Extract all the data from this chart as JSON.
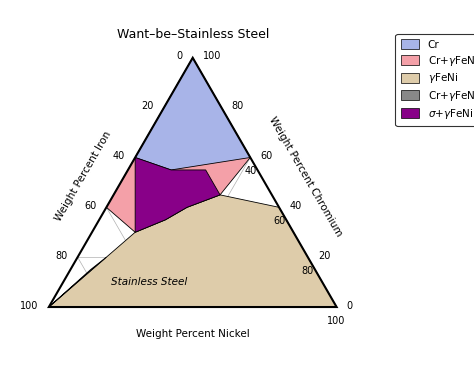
{
  "title": "Want–be–Stainless Steel",
  "xlabel": "Weight Percent Nickel",
  "ylabel_left": "Weight Percent Iron",
  "ylabel_right": "Weight Percent Chromium",
  "grid_color": "#b0b0b0",
  "grid_lw": 0.5,
  "outer_lw": 1.5,
  "region_border_lw": 0.6,
  "regions": [
    {
      "name": "gamma_FeNi",
      "color": "#deccaa",
      "alpha": 1.0,
      "zorder": 2,
      "points_crfeni": [
        [
          0,
          0,
          100
        ],
        [
          0,
          100,
          0
        ],
        [
          10,
          85,
          5
        ],
        [
          20,
          70,
          10
        ],
        [
          30,
          55,
          15
        ],
        [
          35,
          42,
          23
        ],
        [
          40,
          32,
          28
        ],
        [
          45,
          18,
          37
        ],
        [
          40,
          0,
          60
        ]
      ]
    },
    {
      "name": "Cr_gamma",
      "color": "#f4a0a8",
      "alpha": 1.0,
      "zorder": 3,
      "points_crfeni": [
        [
          100,
          0,
          0
        ],
        [
          60,
          0,
          40
        ],
        [
          45,
          18,
          37
        ],
        [
          40,
          32,
          28
        ],
        [
          35,
          42,
          23
        ],
        [
          30,
          55,
          15
        ],
        [
          40,
          60,
          0
        ],
        [
          100,
          0,
          0
        ]
      ]
    },
    {
      "name": "Cr",
      "color": "#a8b4e8",
      "alpha": 1.0,
      "zorder": 4,
      "points_crfeni": [
        [
          100,
          0,
          0
        ],
        [
          60,
          40,
          0
        ],
        [
          55,
          30,
          15
        ],
        [
          60,
          0,
          40
        ]
      ]
    },
    {
      "name": "sigma_gamma",
      "color": "#880088",
      "alpha": 1.0,
      "zorder": 5,
      "points_crfeni": [
        [
          55,
          30,
          15
        ],
        [
          60,
          40,
          0
        ],
        [
          30,
          55,
          15
        ],
        [
          35,
          42,
          23
        ],
        [
          40,
          32,
          28
        ],
        [
          45,
          18,
          37
        ],
        [
          55,
          18,
          27
        ]
      ]
    },
    {
      "name": "Cr_gamma2",
      "color": "#888888",
      "alpha": 1.0,
      "zorder": 5,
      "points_crfeni": [
        [
          0,
          100,
          0
        ],
        [
          10,
          85,
          5
        ],
        [
          20,
          70,
          10
        ],
        [
          15,
          78,
          7
        ]
      ]
    }
  ],
  "stainless_label_crfeni": [
    10,
    60,
    30
  ],
  "legend_entries": [
    {
      "label": "Cr",
      "color": "#a8b4e8"
    },
    {
      "label": "Cr+$\\gamma$FeNi",
      "color": "#f4a0a8"
    },
    {
      "label": "$\\gamma$FeNi",
      "color": "#deccaa"
    },
    {
      "label": "Cr+$\\gamma$FeNi",
      "color": "#888888"
    },
    {
      "label": "$\\sigma$+$\\gamma$FeNi",
      "color": "#880088"
    }
  ],
  "tick_values": [
    0,
    20,
    40,
    60,
    80,
    100
  ],
  "fontsize_ticks": 7,
  "fontsize_labels": 7.5,
  "fontsize_title": 9,
  "fontsize_legend": 7.5,
  "fontsize_ss_label": 7.5
}
